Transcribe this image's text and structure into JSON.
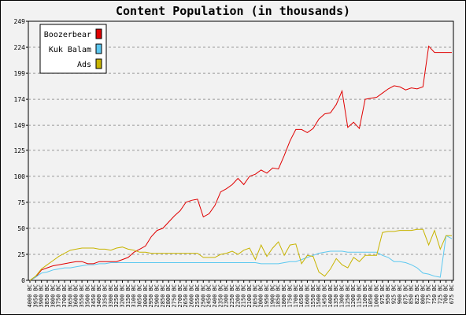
{
  "chart_data": {
    "type": "line",
    "title": "Content Population (in thousands)",
    "xlabel": "",
    "ylabel": "",
    "ylim": [
      0,
      249
    ],
    "yticks": [
      0,
      25,
      50,
      75,
      100,
      125,
      149,
      174,
      199,
      224,
      249
    ],
    "grid": true,
    "legend_position": "top-left",
    "categories": [
      "4000 BC",
      "3950 BC",
      "3900 BC",
      "3850 BC",
      "3800 BC",
      "3750 BC",
      "3700 BC",
      "3650 BC",
      "3600 BC",
      "3550 BC",
      "3500 BC",
      "3450 BC",
      "3400 BC",
      "3350 BC",
      "3300 BC",
      "3250 BC",
      "3200 BC",
      "3150 BC",
      "3100 BC",
      "3050 BC",
      "3000 BC",
      "2950 BC",
      "2900 BC",
      "2850 BC",
      "2800 BC",
      "2750 BC",
      "2700 BC",
      "2650 BC",
      "2600 BC",
      "2550 BC",
      "2500 BC",
      "2450 BC",
      "2400 BC",
      "2350 BC",
      "2300 BC",
      "2250 BC",
      "2200 BC",
      "2150 BC",
      "2100 BC",
      "2050 BC",
      "2000 BC",
      "1950 BC",
      "1900 BC",
      "1850 BC",
      "1800 BC",
      "1750 BC",
      "1700 BC",
      "1650 BC",
      "1600 BC",
      "1550 BC",
      "1500 BC",
      "1450 BC",
      "1400 BC",
      "1350 BC",
      "1300 BC",
      "1250 BC",
      "1200 BC",
      "1150 BC",
      "1100 BC",
      "1050 BC",
      "1000 BC",
      "975 BC",
      "950 BC",
      "925 BC",
      "900 BC",
      "875 BC",
      "850 BC",
      "825 BC",
      "800 BC",
      "775 BC",
      "750 BC",
      "725 BC",
      "700 BC",
      "675 BC"
    ],
    "series": [
      {
        "name": "Boozerbear",
        "color": "#e00000",
        "values": [
          0,
          3,
          10,
          12,
          14,
          15,
          16,
          17,
          18,
          18,
          16,
          16,
          18,
          18,
          18,
          18,
          20,
          22,
          27,
          30,
          33,
          42,
          48,
          50,
          56,
          62,
          67,
          75,
          77,
          78,
          61,
          64,
          72,
          85,
          88,
          92,
          98,
          92,
          100,
          102,
          106,
          103,
          108,
          107,
          120,
          134,
          145,
          145,
          142,
          146,
          155,
          160,
          161,
          169,
          182,
          147,
          152,
          146,
          174,
          175,
          176,
          180,
          184,
          187,
          186,
          183,
          185,
          184,
          186,
          225,
          219,
          219,
          219,
          219
        ]
      },
      {
        "name": "Kuk Balam",
        "color": "#5cc8f0",
        "values": [
          0,
          3,
          7,
          8,
          10,
          11,
          12,
          12,
          13,
          14,
          15,
          15,
          16,
          16,
          17,
          17,
          17,
          17,
          17,
          17,
          17,
          17,
          17,
          17,
          17,
          17,
          17,
          17,
          17,
          17,
          17,
          17,
          17,
          17,
          17,
          17,
          17,
          17,
          17,
          17,
          16,
          16,
          16,
          16,
          17,
          18,
          18,
          20,
          22,
          24,
          26,
          27,
          28,
          28,
          28,
          27,
          27,
          27,
          27,
          27,
          27,
          24,
          22,
          18,
          18,
          17,
          15,
          12,
          7,
          6,
          4,
          3,
          43,
          40
        ]
      },
      {
        "name": "Ads",
        "color": "#c8b400",
        "values": [
          0,
          4,
          11,
          15,
          19,
          23,
          26,
          29,
          30,
          31,
          31,
          31,
          30,
          30,
          29,
          31,
          32,
          30,
          29,
          27,
          27,
          26,
          26,
          26,
          26,
          26,
          26,
          26,
          26,
          26,
          22,
          22,
          22,
          25,
          26,
          28,
          25,
          29,
          31,
          20,
          34,
          23,
          31,
          37,
          24,
          34,
          35,
          16,
          24,
          23,
          8,
          4,
          11,
          21,
          15,
          12,
          22,
          18,
          24,
          24,
          24,
          46,
          47,
          47,
          48,
          48,
          48,
          49,
          49,
          34,
          48,
          30,
          43,
          43
        ]
      }
    ]
  }
}
